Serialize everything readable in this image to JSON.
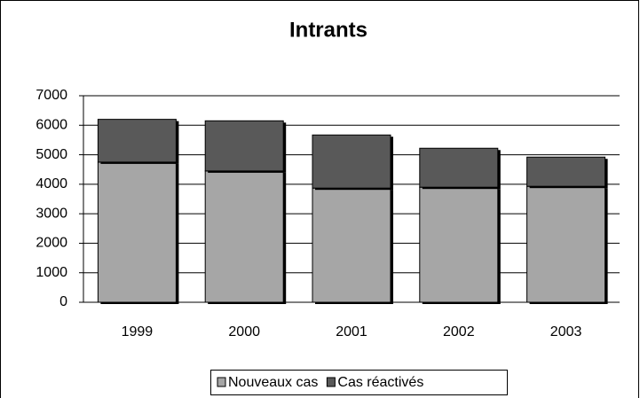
{
  "chart_data": {
    "type": "bar",
    "stacked": true,
    "title": "Intrants",
    "categories": [
      "1999",
      "2000",
      "2001",
      "2002",
      "2003"
    ],
    "series": [
      {
        "name": "Nouveaux cas",
        "color": "#a6a6a6",
        "values": [
          4750,
          4450,
          3870,
          3900,
          3930
        ]
      },
      {
        "name": "Cas réactivés",
        "color": "#595959",
        "values": [
          1450,
          1700,
          1800,
          1320,
          990
        ]
      }
    ],
    "ylim": [
      0,
      7000
    ],
    "yticks": [
      0,
      1000,
      2000,
      3000,
      4000,
      5000,
      6000,
      7000
    ],
    "grid": true,
    "legend": "bottom"
  }
}
